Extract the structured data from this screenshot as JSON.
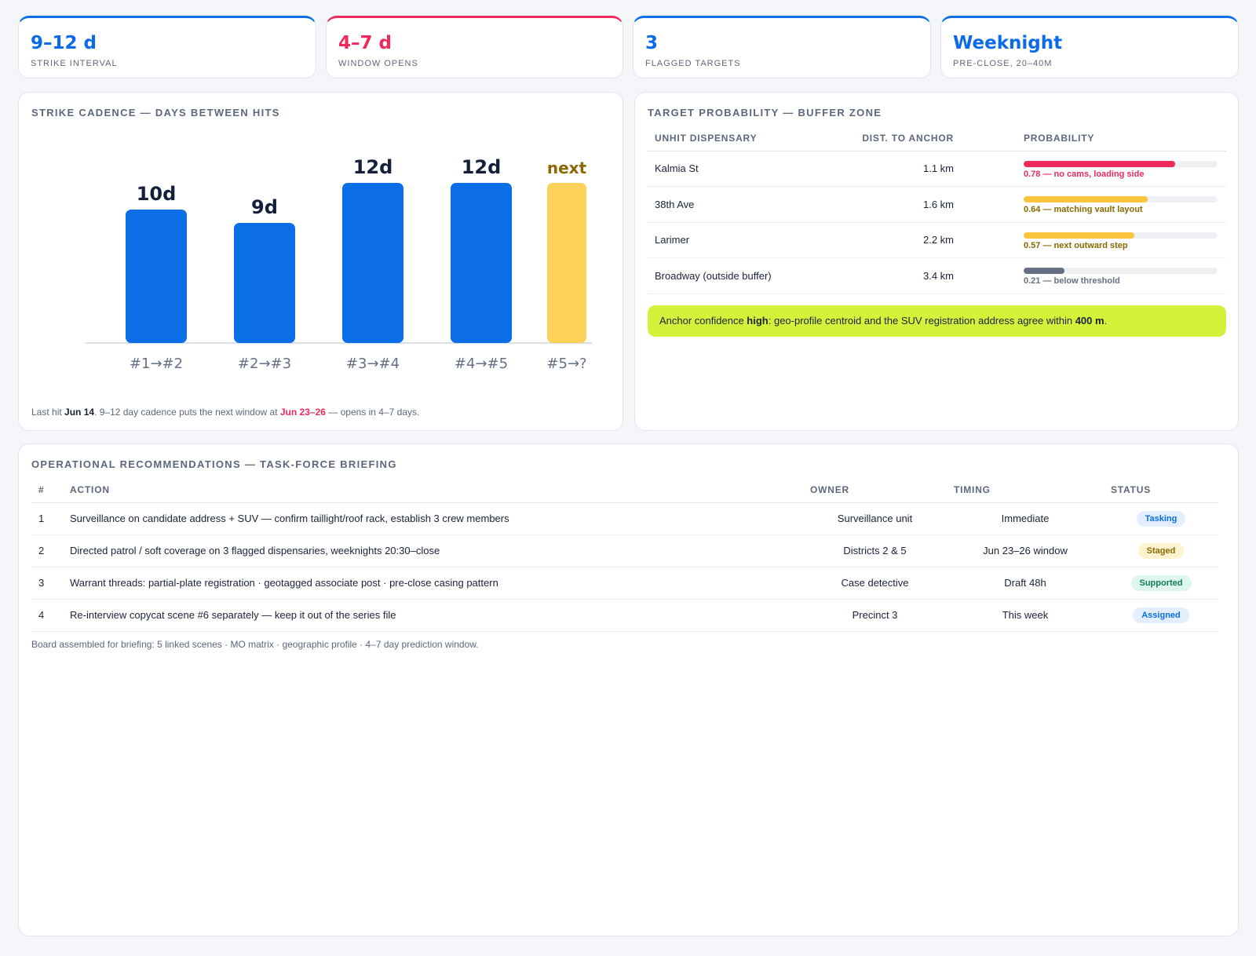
{
  "kpis": [
    {
      "value": "9–12 d",
      "label": "Strike interval",
      "accent": "#0b6ee6"
    },
    {
      "value": "4–7 d",
      "label": "Window opens",
      "accent": "#ef2a5b"
    },
    {
      "value": "3",
      "label": "Flagged targets",
      "accent": "#0b6ee6"
    },
    {
      "value": "Weeknight",
      "label": "Pre-close, 20–40m",
      "accent": "#0b6ee6"
    }
  ],
  "cadence": {
    "title": "Strike cadence — days between hits",
    "caption": {
      "prefix": "Last hit ",
      "last_hit": "Jun 14",
      "middle": ". 9–12 day cadence puts the next window at ",
      "window": "Jun 23–26",
      "suffix": " — opens in 4–7 days."
    }
  },
  "chart_data": {
    "type": "bar",
    "categories": [
      "#1→#2",
      "#2→#3",
      "#3→#4",
      "#4→#5",
      "#5→?"
    ],
    "values": [
      10,
      9,
      12,
      12,
      12
    ],
    "data_labels": [
      "10d",
      "9d",
      "12d",
      "12d",
      "next"
    ],
    "colors": [
      "#0b6ee6",
      "#0b6ee6",
      "#0b6ee6",
      "#0b6ee6",
      "#fdd25a"
    ],
    "ylim": [
      0,
      12
    ],
    "grid": false,
    "title": "Strike cadence — days between hits"
  },
  "probability": {
    "title": "Target probability — buffer zone",
    "headers": [
      "Unhit dispensary",
      "Dist. to anchor",
      "Probability"
    ],
    "rows": [
      {
        "name": "Kalmia St",
        "dist": "1.1 km",
        "prob": 0.78,
        "note": "0.78 — no cams, loading side",
        "color": "#ef2a5b",
        "note_color": "#ef2a5b"
      },
      {
        "name": "38th Ave",
        "dist": "1.6 km",
        "prob": 0.64,
        "note": "0.64 — matching vault layout",
        "color": "#fbc43d",
        "note_color": "#8a6a00"
      },
      {
        "name": "Larimer",
        "dist": "2.2 km",
        "prob": 0.57,
        "note": "0.57 — next outward step",
        "color": "#fbc43d",
        "note_color": "#8a6a00"
      },
      {
        "name": "Broadway (outside buffer)",
        "dist": "3.4 km",
        "prob": 0.21,
        "note": "0.21 — below threshold",
        "color": "#667085",
        "note_color": "#667085"
      }
    ],
    "callout": {
      "prefix": "Anchor confidence ",
      "level": "high",
      "middle": ": geo-profile centroid and the SUV registration address agree within ",
      "distance": "400 m",
      "suffix": "."
    }
  },
  "ops": {
    "title": "Operational recommendations — task-force briefing",
    "headers": [
      "#",
      "Action",
      "Owner",
      "Timing",
      "Status"
    ],
    "rows": [
      {
        "num": "1",
        "action": "Surveillance on candidate address + SUV — confirm taillight/roof rack, establish 3 crew members",
        "owner": "Surveillance unit",
        "timing": "Immediate",
        "status": "Tasking",
        "status_bg": "#e3efff",
        "status_fg": "#0b6ee6"
      },
      {
        "num": "2",
        "action": "Directed patrol / soft coverage on 3 flagged dispensaries, weeknights 20:30–close",
        "owner": "Districts 2 & 5",
        "timing": "Jun 23–26 window",
        "status": "Staged",
        "status_bg": "#fff3cf",
        "status_fg": "#8a6a00"
      },
      {
        "num": "3",
        "action": "Warrant threads: partial-plate registration · geotagged associate post · pre-close casing pattern",
        "owner": "Case detective",
        "timing": "Draft 48h",
        "status": "Supported",
        "status_bg": "#dff6ee",
        "status_fg": "#0e7a5c"
      },
      {
        "num": "4",
        "action": "Re-interview copycat scene #6 separately — keep it out of the series file",
        "owner": "Precinct 3",
        "timing": "This week",
        "status": "Assigned",
        "status_bg": "#e3efff",
        "status_fg": "#0b6ee6"
      }
    ],
    "footer": "Board assembled for briefing: 5 linked scenes · MO matrix · geographic profile · 4–7 day prediction window."
  }
}
